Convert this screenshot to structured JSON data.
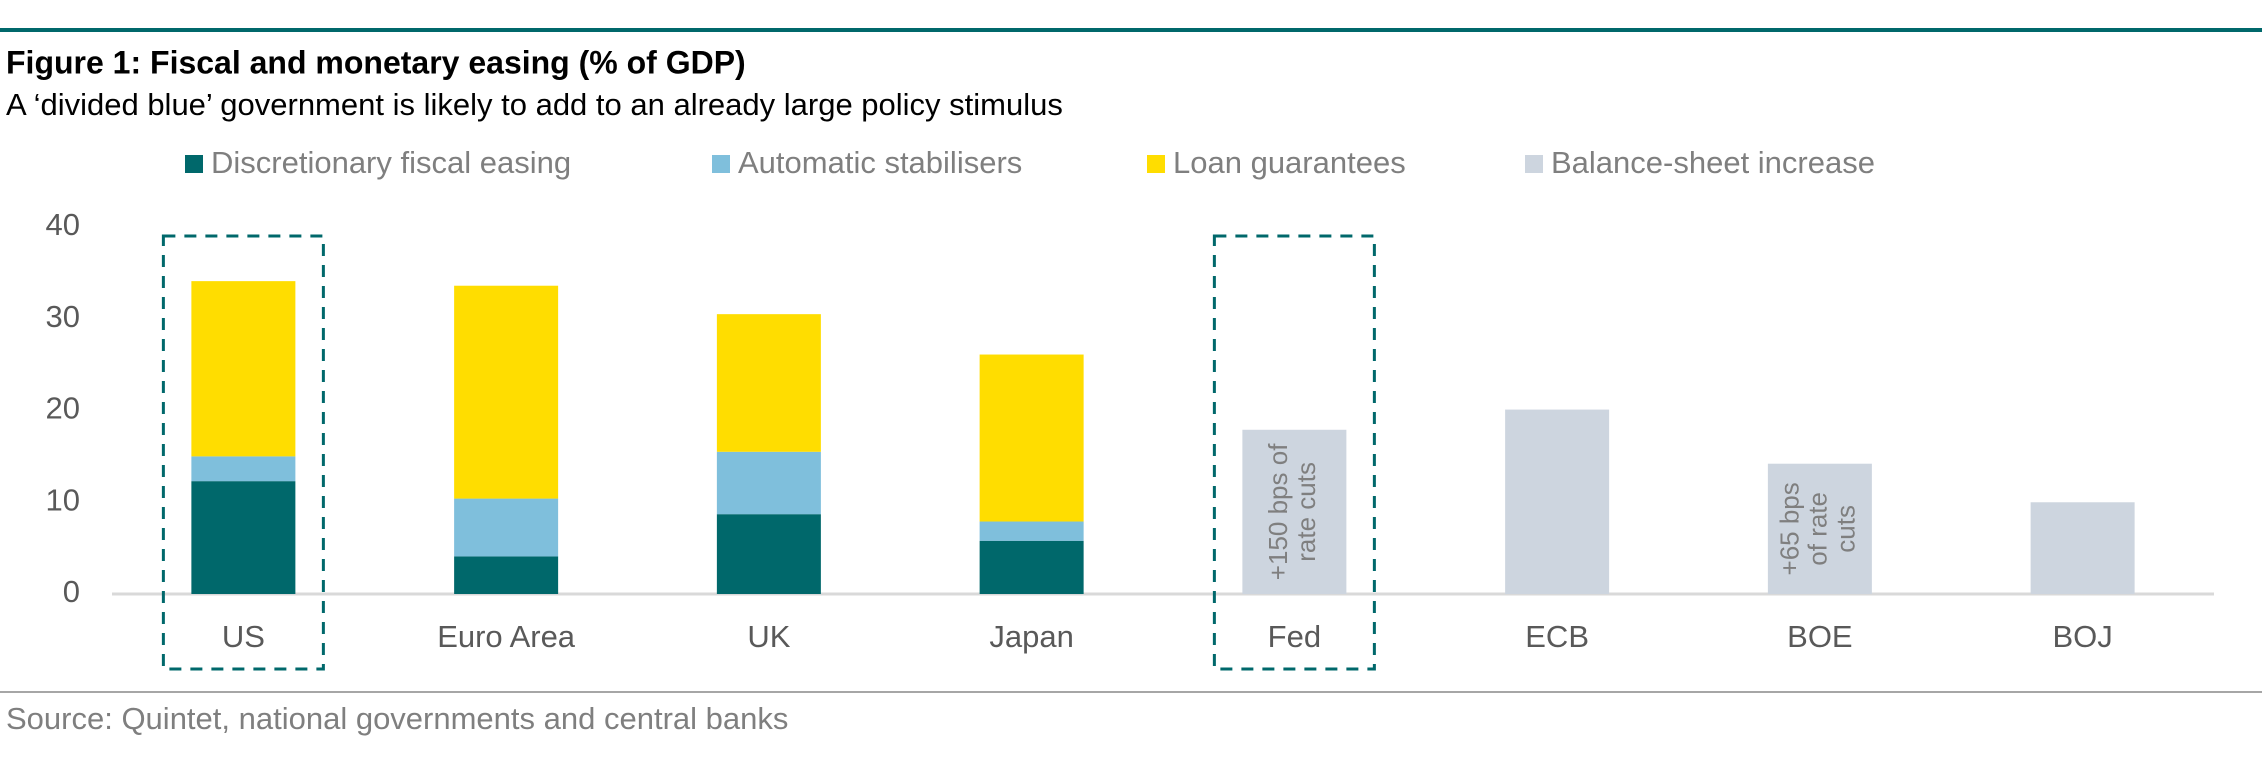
{
  "chart_data": {
    "type": "stacked_bar",
    "title": "Figure 1: Fiscal and monetary easing (% of GDP)",
    "subtitle": "A ‘divided blue’ government is likely to add to an already large policy stimulus",
    "source": "Source: Quintet, national governments and central banks",
    "categories": [
      "US",
      "Euro Area",
      "UK",
      "Japan",
      "Fed",
      "ECB",
      "BOE",
      "BOJ"
    ],
    "series": [
      {
        "name": "Discretionary fiscal easing",
        "color": "#00686b",
        "values": [
          12.3,
          4.1,
          8.7,
          5.8,
          null,
          null,
          null,
          null
        ]
      },
      {
        "name": "Automatic stabilisers",
        "color": "#7fbfdc",
        "values": [
          2.7,
          6.3,
          6.8,
          2.1,
          null,
          null,
          null,
          null
        ]
      },
      {
        "name": "Loan guarantees",
        "color": "#ffdd00",
        "values": [
          19.1,
          23.2,
          15.0,
          18.2,
          null,
          null,
          null,
          null
        ]
      },
      {
        "name": "Balance-sheet increase",
        "color": "#cdd5df",
        "values": [
          null,
          null,
          null,
          null,
          17.9,
          20.1,
          14.2,
          10.0
        ]
      }
    ],
    "ylim": [
      0,
      40
    ],
    "yticks": [
      0,
      10,
      20,
      30,
      40
    ],
    "annotations": [
      {
        "category": "Fed",
        "lines": [
          "+150 bps of",
          "rate cuts"
        ]
      },
      {
        "category": "BOE",
        "lines": [
          "+65 bps",
          "of rate",
          "cuts"
        ]
      }
    ]
  }
}
